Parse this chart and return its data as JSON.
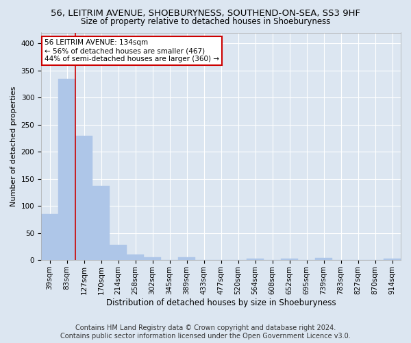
{
  "title": "56, LEITRIM AVENUE, SHOEBURYNESS, SOUTHEND-ON-SEA, SS3 9HF",
  "subtitle": "Size of property relative to detached houses in Shoeburyness",
  "xlabel": "Distribution of detached houses by size in Shoeburyness",
  "ylabel": "Number of detached properties",
  "categories": [
    "39sqm",
    "83sqm",
    "127sqm",
    "170sqm",
    "214sqm",
    "258sqm",
    "302sqm",
    "345sqm",
    "389sqm",
    "433sqm",
    "477sqm",
    "520sqm",
    "564sqm",
    "608sqm",
    "652sqm",
    "695sqm",
    "739sqm",
    "783sqm",
    "827sqm",
    "870sqm",
    "914sqm"
  ],
  "values": [
    85,
    335,
    230,
    137,
    28,
    10,
    5,
    0,
    5,
    0,
    0,
    0,
    3,
    0,
    3,
    0,
    4,
    0,
    0,
    0,
    3
  ],
  "bar_color": "#aec6e8",
  "bar_edge_color": "#aec6e8",
  "property_line_idx": 2,
  "annotation_text": "56 LEITRIM AVENUE: 134sqm\n← 56% of detached houses are smaller (467)\n44% of semi-detached houses are larger (360) →",
  "annotation_box_color": "#ffffff",
  "annotation_box_edge": "#cc0000",
  "vline_color": "#cc0000",
  "background_color": "#dce6f1",
  "plot_bg_color": "#dce6f1",
  "footer_line1": "Contains HM Land Registry data © Crown copyright and database right 2024.",
  "footer_line2": "Contains public sector information licensed under the Open Government Licence v3.0.",
  "ylim": [
    0,
    420
  ],
  "yticks": [
    0,
    50,
    100,
    150,
    200,
    250,
    300,
    350,
    400
  ],
  "grid_color": "#ffffff",
  "title_fontsize": 9.5,
  "subtitle_fontsize": 8.5,
  "xlabel_fontsize": 8.5,
  "ylabel_fontsize": 8,
  "tick_fontsize": 7.5,
  "footer_fontsize": 7
}
